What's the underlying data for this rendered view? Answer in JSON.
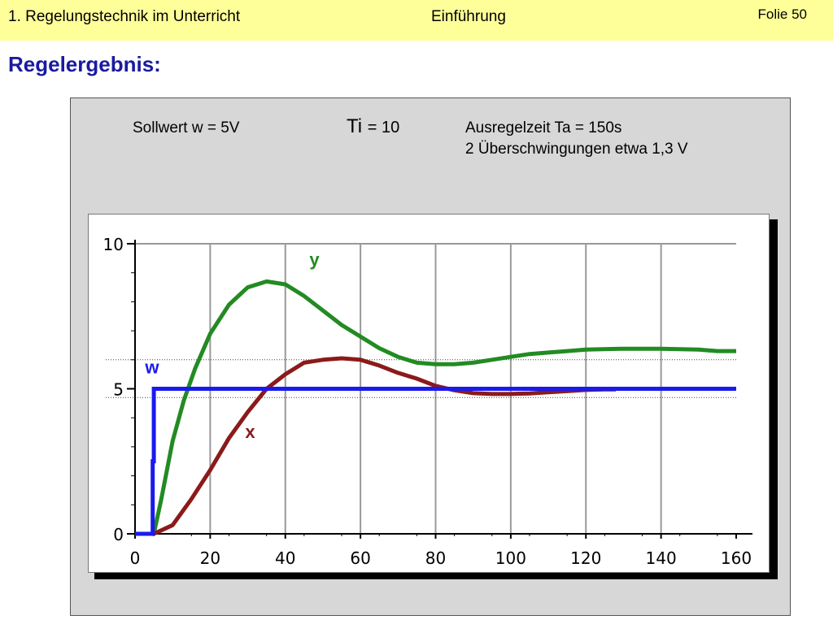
{
  "header": {
    "left": "1. Regelungstechnik im Unterricht",
    "middle": "Einführung",
    "slide": "Folie 50"
  },
  "title": "Regelergebnis:",
  "info": {
    "sollwert": "Sollwert w = 5V",
    "ti_symbol": "Ti",
    "ti_value": "= 10",
    "ausregelzeit": "Ausregelzeit Ta = 150s",
    "ueberschwingungen": "2 Überschwingungen etwa 1,3 V"
  },
  "colors": {
    "header_bg": "#ffff99",
    "title": "#1a1aa0",
    "w": "#1a1aee",
    "x": "#8b1a1a",
    "y": "#228b22"
  },
  "chart_data": {
    "type": "line",
    "title": "",
    "xlabel": "",
    "ylabel": "",
    "xlim": [
      0,
      160
    ],
    "ylim": [
      0,
      10
    ],
    "xticks": [
      0,
      20,
      40,
      60,
      80,
      100,
      120,
      140,
      160
    ],
    "yticks": [
      0,
      5,
      10
    ],
    "vgrid_x": [
      20,
      40,
      60,
      80,
      100,
      120,
      140
    ],
    "dotted_hlines": [
      6.0,
      4.7
    ],
    "series": [
      {
        "name": "w",
        "label": "w",
        "x": [
          0,
          4.7,
          4.7,
          5,
          5,
          160
        ],
        "y": [
          0,
          0,
          2.5,
          2.5,
          5,
          5
        ]
      },
      {
        "name": "x",
        "label": "x",
        "x": [
          5,
          10,
          15,
          20,
          25,
          30,
          35,
          40,
          45,
          50,
          55,
          60,
          65,
          70,
          75,
          80,
          85,
          90,
          95,
          100,
          105,
          110,
          115,
          120,
          125,
          128
        ],
        "y": [
          0,
          0.3,
          1.2,
          2.2,
          3.3,
          4.2,
          5.0,
          5.5,
          5.9,
          6.0,
          6.05,
          6.0,
          5.8,
          5.55,
          5.35,
          5.1,
          4.95,
          4.85,
          4.82,
          4.82,
          4.84,
          4.88,
          4.92,
          4.96,
          4.98,
          4.98
        ]
      },
      {
        "name": "y",
        "label": "y",
        "x": [
          5,
          7,
          10,
          13,
          16,
          20,
          25,
          30,
          35,
          40,
          45,
          50,
          55,
          60,
          65,
          70,
          75,
          80,
          85,
          90,
          95,
          100,
          105,
          110,
          115,
          120,
          130,
          140,
          150,
          155,
          160
        ],
        "y": [
          0,
          1.2,
          3.2,
          4.6,
          5.7,
          6.9,
          7.9,
          8.5,
          8.7,
          8.6,
          8.2,
          7.7,
          7.2,
          6.8,
          6.4,
          6.1,
          5.9,
          5.85,
          5.85,
          5.9,
          6.0,
          6.1,
          6.2,
          6.25,
          6.3,
          6.35,
          6.38,
          6.38,
          6.35,
          6.3,
          6.3
        ]
      }
    ]
  }
}
